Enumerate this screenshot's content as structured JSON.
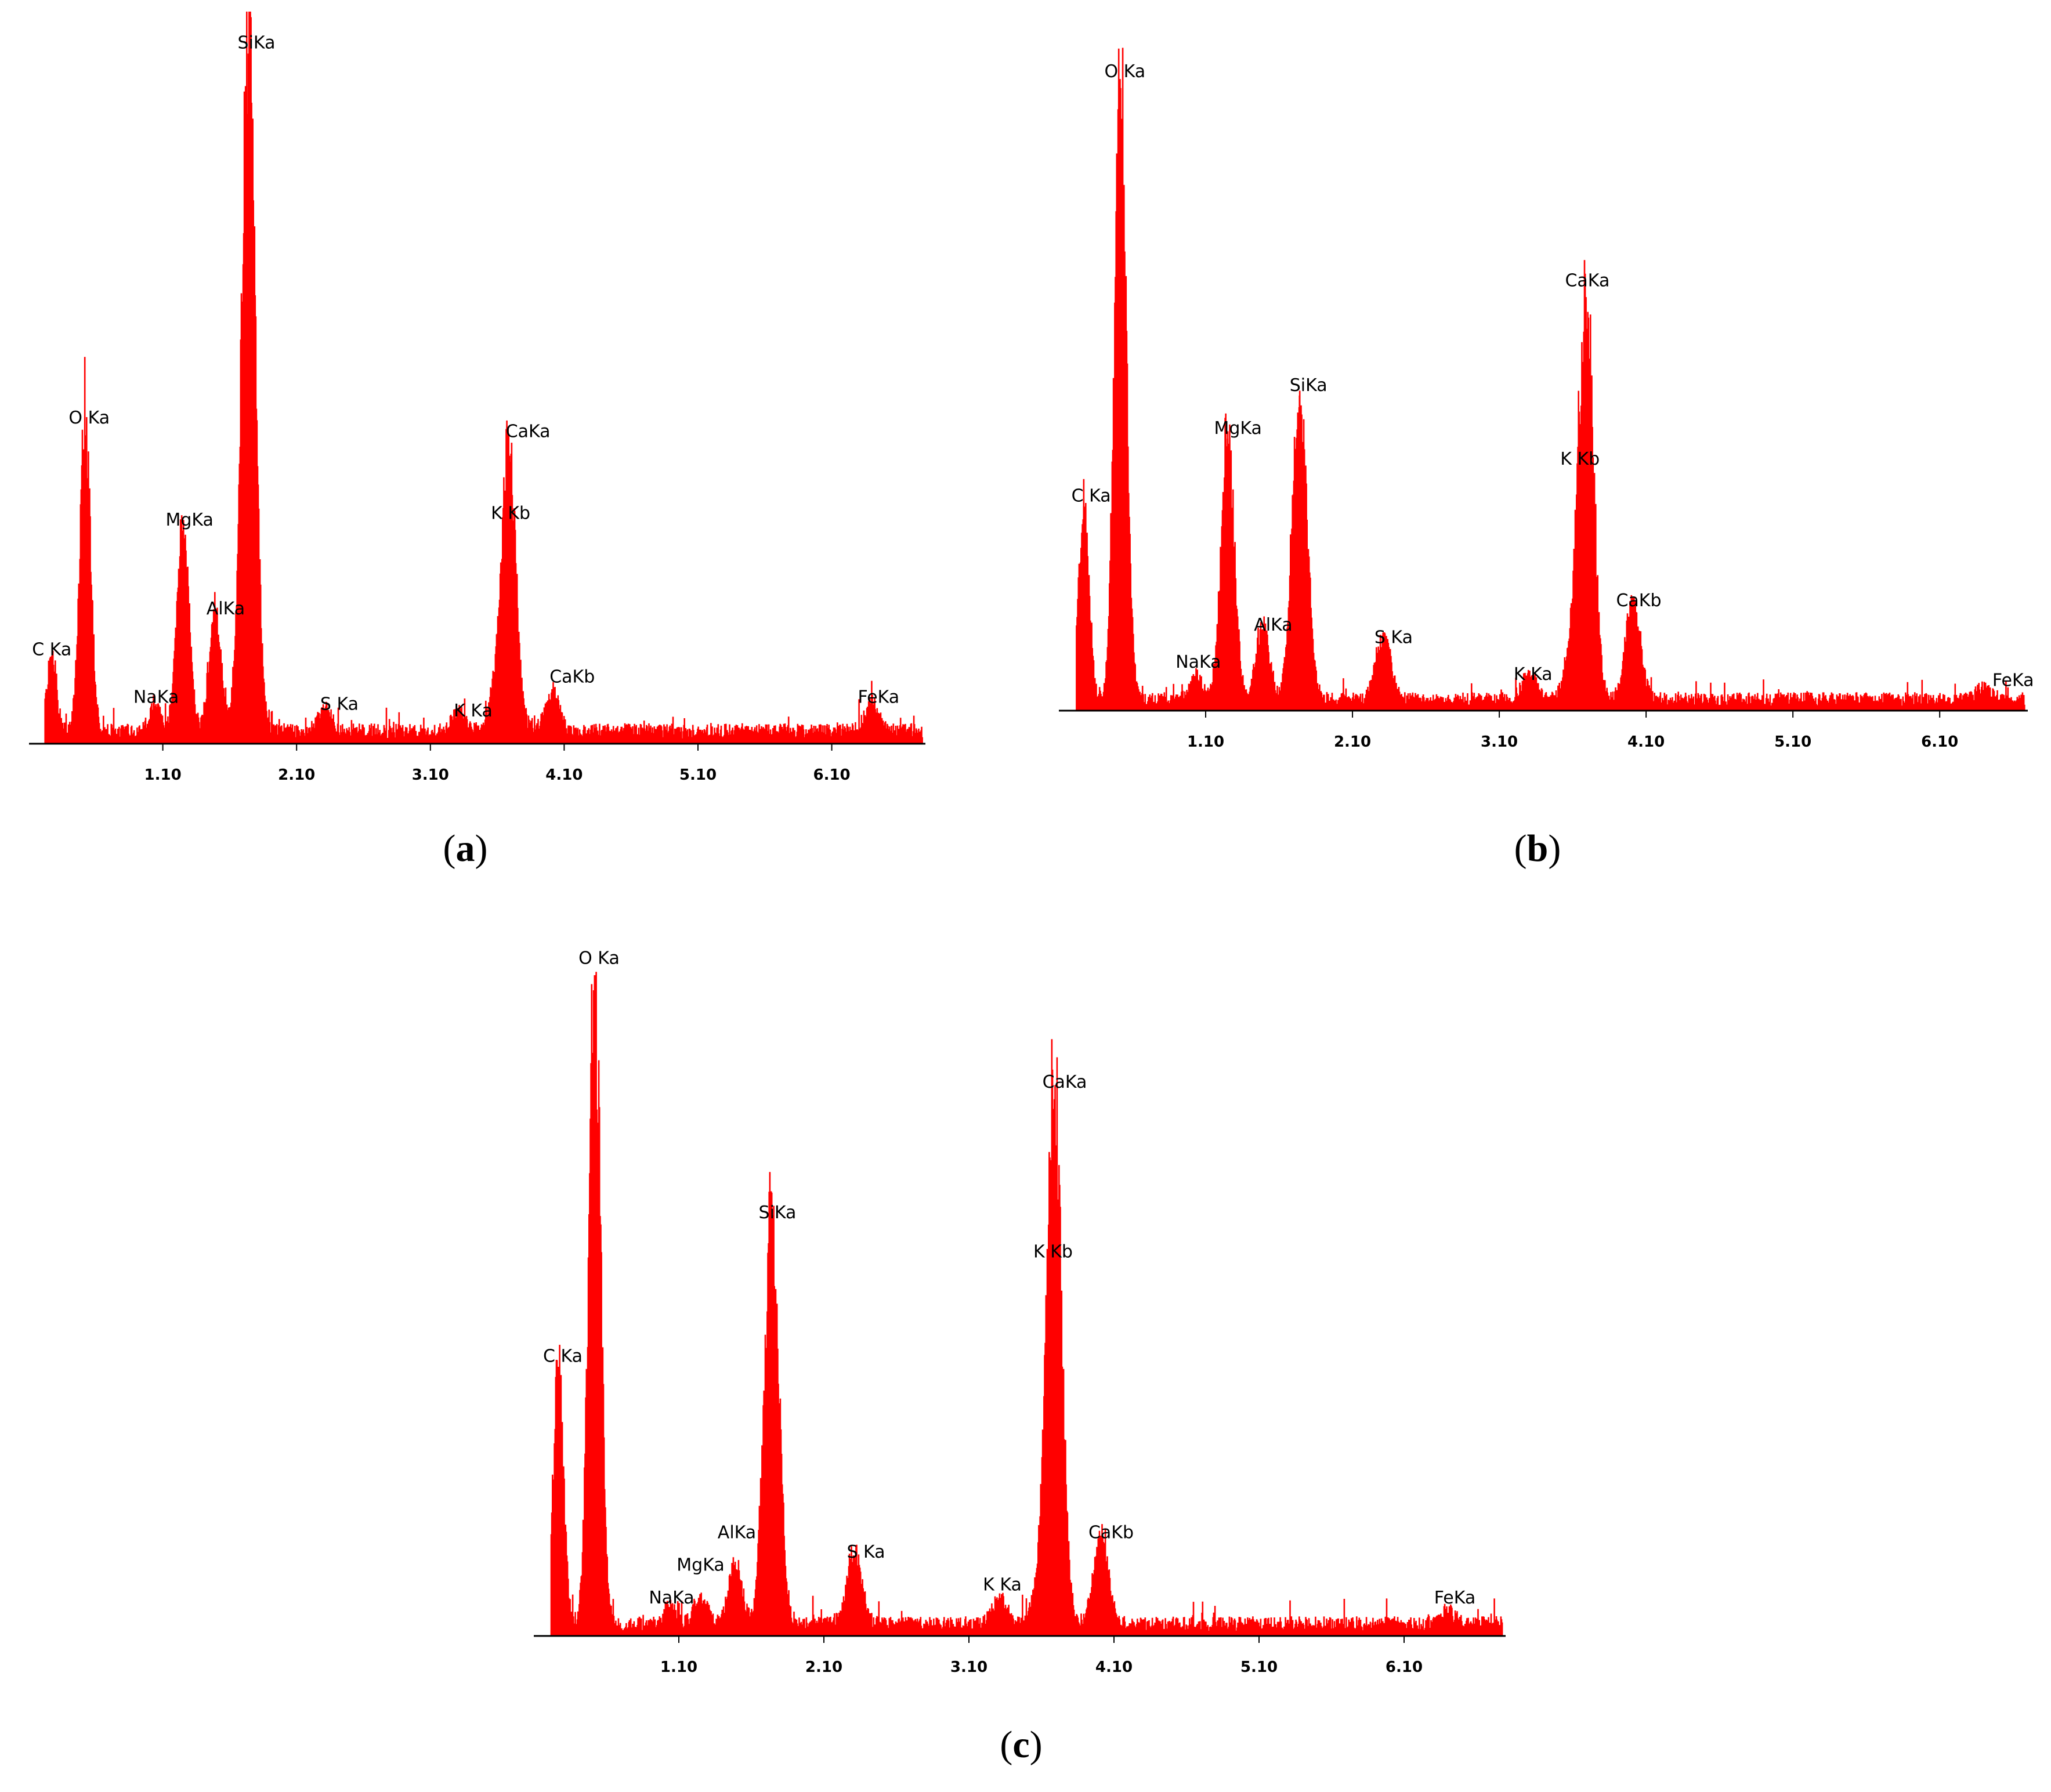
{
  "figure": {
    "panel_labels": [
      {
        "open": "(",
        "letter": "a",
        "close": ")"
      },
      {
        "open": "(",
        "letter": "b",
        "close": ")"
      },
      {
        "open": "(",
        "letter": "c",
        "close": ")"
      }
    ]
  },
  "colors": {
    "spectrum": "#ff0000",
    "axis": "#000000",
    "background": "#ffffff"
  },
  "chart_data": [
    {
      "type": "bar",
      "panel": "a",
      "title": "",
      "xlabel": "",
      "ylabel": "",
      "xlim": [
        0.1,
        6.8
      ],
      "ylim": [
        0,
        100
      ],
      "x_ticks": [
        1.1,
        2.1,
        3.1,
        4.1,
        5.1,
        6.1
      ],
      "x_tick_labels": [
        "1.10",
        "2.10",
        "3.10",
        "4.10",
        "5.10",
        "6.10"
      ],
      "baseline": 2.5,
      "peaks": [
        {
          "label": "C Ka",
          "x": 0.27,
          "height": 11,
          "width": 0.035
        },
        {
          "label": "O Ka",
          "x": 0.52,
          "height": 44,
          "width": 0.04
        },
        {
          "label": "NaKa",
          "x": 1.04,
          "height": 4,
          "width": 0.04
        },
        {
          "label": "MgKa",
          "x": 1.25,
          "height": 30,
          "width": 0.045
        },
        {
          "label": "AlKa",
          "x": 1.49,
          "height": 17,
          "width": 0.045
        },
        {
          "label": "SiKa",
          "x": 1.74,
          "height": 100,
          "width": 0.05
        },
        {
          "label": "S Ka",
          "x": 2.31,
          "height": 3,
          "width": 0.05
        },
        {
          "label": "K Ka",
          "x": 3.31,
          "height": 3,
          "width": 0.05
        },
        {
          "label": "K Kb",
          "x": 3.59,
          "height": 6,
          "width": 0.05
        },
        {
          "label": "CaKa",
          "x": 3.69,
          "height": 41,
          "width": 0.05
        },
        {
          "label": "CaKb",
          "x": 4.01,
          "height": 6,
          "width": 0.05
        },
        {
          "label": "FeKa",
          "x": 6.4,
          "height": 4,
          "width": 0.05
        }
      ],
      "annotations": [
        {
          "text": "C Ka",
          "x": 0.27,
          "y": 13
        },
        {
          "text": "O Ka",
          "x": 0.55,
          "y": 47
        },
        {
          "text": "NaKa",
          "x": 1.05,
          "y": 6
        },
        {
          "text": "MgKa",
          "x": 1.3,
          "y": 32
        },
        {
          "text": "AlKa",
          "x": 1.57,
          "y": 19
        },
        {
          "text": "SiKa",
          "x": 1.8,
          "y": 102
        },
        {
          "text": "S Ka",
          "x": 2.42,
          "y": 5
        },
        {
          "text": "K Ka",
          "x": 3.42,
          "y": 4
        },
        {
          "text": "K Kb",
          "x": 3.7,
          "y": 33
        },
        {
          "text": "CaKa",
          "x": 3.83,
          "y": 45
        },
        {
          "text": "CaKb",
          "x": 4.16,
          "y": 9
        },
        {
          "text": "FeKa",
          "x": 6.45,
          "y": 6
        }
      ]
    },
    {
      "type": "bar",
      "panel": "b",
      "title": "",
      "xlabel": "",
      "ylabel": "",
      "xlim": [
        0.1,
        6.7
      ],
      "ylim": [
        0,
        100
      ],
      "x_ticks": [
        1.1,
        2.1,
        3.1,
        4.1,
        5.1,
        6.1
      ],
      "x_tick_labels": [
        "1.10",
        "2.10",
        "3.10",
        "4.10",
        "5.10",
        "6.10"
      ],
      "baseline": 2.5,
      "peaks": [
        {
          "label": "C Ka",
          "x": 0.27,
          "height": 32,
          "width": 0.035
        },
        {
          "label": "O Ka",
          "x": 0.52,
          "height": 100,
          "width": 0.04
        },
        {
          "label": "NaKa",
          "x": 1.04,
          "height": 4,
          "width": 0.04
        },
        {
          "label": "MgKa",
          "x": 1.25,
          "height": 43,
          "width": 0.045
        },
        {
          "label": "AlKa",
          "x": 1.49,
          "height": 12,
          "width": 0.045
        },
        {
          "label": "SiKa",
          "x": 1.74,
          "height": 50,
          "width": 0.05
        },
        {
          "label": "S Ka",
          "x": 2.31,
          "height": 10,
          "width": 0.05
        },
        {
          "label": "K Ka",
          "x": 3.31,
          "height": 4,
          "width": 0.05
        },
        {
          "label": "K Kb",
          "x": 3.59,
          "height": 6,
          "width": 0.05
        },
        {
          "label": "CaKa",
          "x": 3.69,
          "height": 66,
          "width": 0.05
        },
        {
          "label": "CaKb",
          "x": 4.01,
          "height": 16,
          "width": 0.05
        },
        {
          "label": "FeKa",
          "x": 6.4,
          "height": 2,
          "width": 0.05
        }
      ],
      "annotations": [
        {
          "text": "C Ka",
          "x": 0.32,
          "y": 34
        },
        {
          "text": "O Ka",
          "x": 0.55,
          "y": 103
        },
        {
          "text": "NaKa",
          "x": 1.05,
          "y": 7
        },
        {
          "text": "MgKa",
          "x": 1.32,
          "y": 45
        },
        {
          "text": "AlKa",
          "x": 1.56,
          "y": 13
        },
        {
          "text": "SiKa",
          "x": 1.8,
          "y": 52
        },
        {
          "text": "S Ka",
          "x": 2.38,
          "y": 11
        },
        {
          "text": "K Ka",
          "x": 3.33,
          "y": 5
        },
        {
          "text": "K Kb",
          "x": 3.65,
          "y": 40
        },
        {
          "text": "CaKa",
          "x": 3.7,
          "y": 69
        },
        {
          "text": "CaKb",
          "x": 4.05,
          "y": 17
        },
        {
          "text": "FeKa",
          "x": 6.6,
          "y": 4
        }
      ]
    },
    {
      "type": "bar",
      "panel": "c",
      "title": "",
      "xlabel": "",
      "ylabel": "",
      "xlim": [
        0.1,
        6.8
      ],
      "ylim": [
        0,
        100
      ],
      "x_ticks": [
        1.1,
        2.1,
        3.1,
        4.1,
        5.1,
        6.1
      ],
      "x_tick_labels": [
        "1.10",
        "2.10",
        "3.10",
        "4.10",
        "5.10",
        "6.10"
      ],
      "baseline": 2.5,
      "peaks": [
        {
          "label": "C Ka",
          "x": 0.27,
          "height": 40,
          "width": 0.035
        },
        {
          "label": "O Ka",
          "x": 0.52,
          "height": 100,
          "width": 0.04
        },
        {
          "label": "NaKa",
          "x": 1.04,
          "height": 3,
          "width": 0.04
        },
        {
          "label": "MgKa",
          "x": 1.25,
          "height": 4,
          "width": 0.045
        },
        {
          "label": "AlKa",
          "x": 1.49,
          "height": 9,
          "width": 0.045
        },
        {
          "label": "SiKa",
          "x": 1.74,
          "height": 62,
          "width": 0.05
        },
        {
          "label": "S Ka",
          "x": 2.31,
          "height": 11,
          "width": 0.05
        },
        {
          "label": "K Ka",
          "x": 3.31,
          "height": 4,
          "width": 0.05
        },
        {
          "label": "K Kb",
          "x": 3.59,
          "height": 6,
          "width": 0.05
        },
        {
          "label": "CaKa",
          "x": 3.69,
          "height": 81,
          "width": 0.05
        },
        {
          "label": "CaKb",
          "x": 4.01,
          "height": 13,
          "width": 0.05
        },
        {
          "label": "FeKa",
          "x": 6.4,
          "height": 2,
          "width": 0.05
        }
      ],
      "annotations": [
        {
          "text": "C Ka",
          "x": 0.3,
          "y": 42
        },
        {
          "text": "O Ka",
          "x": 0.55,
          "y": 103
        },
        {
          "text": "NaKa",
          "x": 1.05,
          "y": 5
        },
        {
          "text": "MgKa",
          "x": 1.25,
          "y": 10
        },
        {
          "text": "AlKa",
          "x": 1.5,
          "y": 15
        },
        {
          "text": "SiKa",
          "x": 1.78,
          "y": 64
        },
        {
          "text": "S Ka",
          "x": 2.39,
          "y": 12
        },
        {
          "text": "K Ka",
          "x": 3.33,
          "y": 7
        },
        {
          "text": "K Kb",
          "x": 3.68,
          "y": 58
        },
        {
          "text": "CaKa",
          "x": 3.76,
          "y": 84
        },
        {
          "text": "CaKb",
          "x": 4.08,
          "y": 15
        },
        {
          "text": "FeKa",
          "x": 6.45,
          "y": 5
        }
      ]
    }
  ]
}
